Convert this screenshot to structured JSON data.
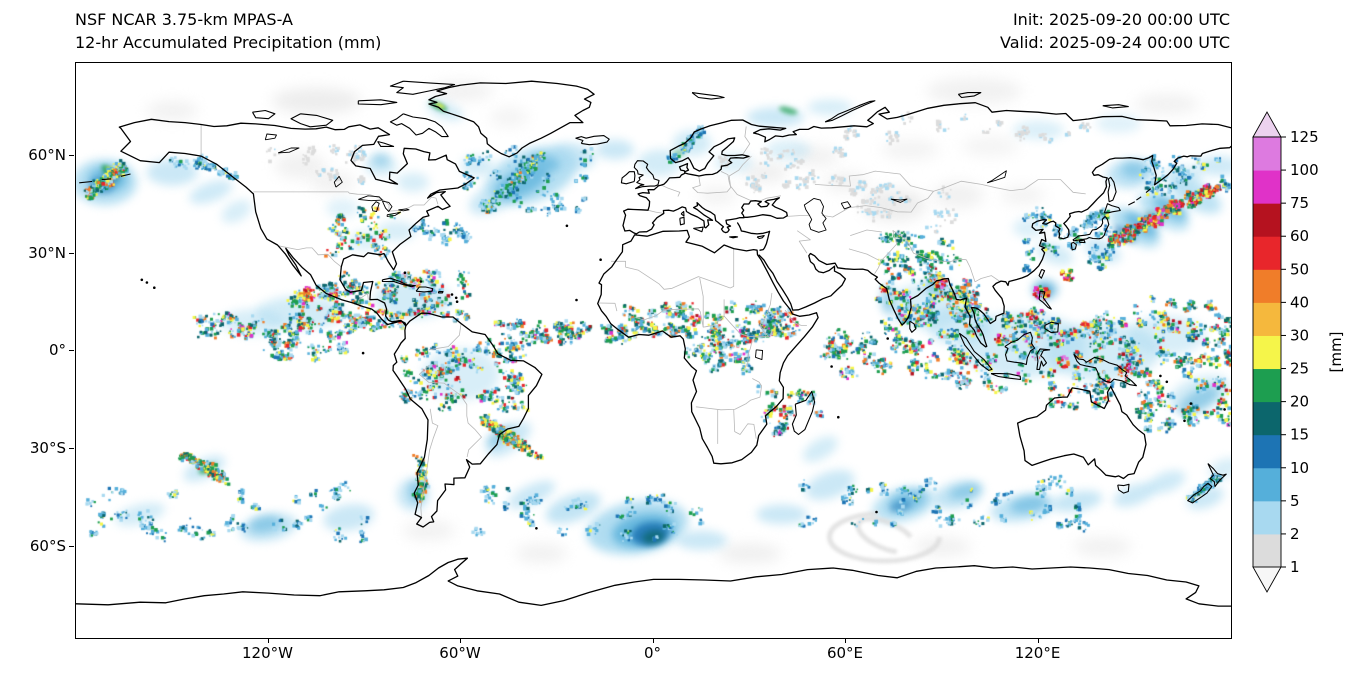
{
  "header": {
    "title_line1": "NSF NCAR 3.75-km MPAS-A",
    "title_line2": "12-hr Accumulated Precipitation (mm)",
    "init_label": "Init: 2025-09-20 00:00 UTC",
    "valid_label": "Valid: 2025-09-24 00:00 UTC"
  },
  "axes": {
    "x_ticks": [
      "120°W",
      "60°W",
      "0°",
      "60°E",
      "120°E"
    ],
    "y_ticks": [
      "60°N",
      "30°N",
      "0°",
      "30°S",
      "60°S"
    ]
  },
  "colorbar": {
    "unit": "[mm]",
    "levels": [
      1,
      2,
      5,
      10,
      15,
      20,
      25,
      30,
      40,
      50,
      60,
      75,
      100,
      125
    ],
    "segment_colors": [
      "#dcdcdc",
      "#a8d9f0",
      "#55afda",
      "#1d74b4",
      "#0c666c",
      "#1d9e50",
      "#f5f54a",
      "#f5b83d",
      "#f07d29",
      "#e8262b",
      "#b5121f",
      "#e032c8",
      "#dd7ae0"
    ],
    "under_color": "#f7f7f7",
    "over_color": "#ecd2ef"
  }
}
